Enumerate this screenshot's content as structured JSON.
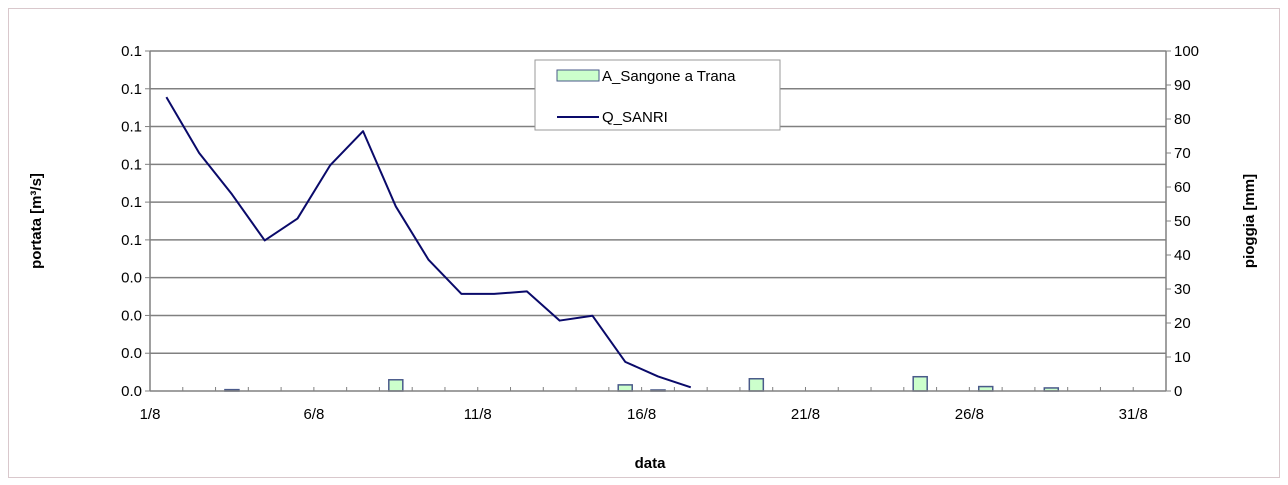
{
  "chart_data": {
    "type": "bar+line",
    "xlabel": "data",
    "ylabel_left": "portata [m³/s]",
    "ylabel_right": "pioggia [mm]",
    "x_ticks": [
      "1/8",
      "6/8",
      "11/8",
      "16/8",
      "21/8",
      "26/8",
      "31/8"
    ],
    "y_left_ticks": [
      "0.0",
      "0.0",
      "0.0",
      "0.0",
      "0.1",
      "0.1",
      "0.1",
      "0.1",
      "0.1",
      "0.1"
    ],
    "y_right_ticks": [
      "0",
      "10",
      "20",
      "30",
      "40",
      "50",
      "60",
      "70",
      "80",
      "90",
      "100"
    ],
    "y_right_range": [
      0,
      100
    ],
    "grid": "horizontal",
    "legend_position": "top-center",
    "series": [
      {
        "name": "A_Sangone a Trana",
        "kind": "bar",
        "axis": "right",
        "color": "#ccffcc",
        "edge_color": "#4a5a8a",
        "days": [
          3,
          8,
          15,
          16,
          19,
          24,
          26,
          28
        ],
        "values": [
          0.4,
          3.3,
          1.8,
          0.3,
          3.6,
          4.2,
          1.3,
          0.9
        ]
      },
      {
        "name": "Q_SANRI",
        "kind": "line",
        "axis": "left",
        "color": "#0a0a6a",
        "days": [
          1.5,
          2.5,
          3.5,
          4.5,
          5.5,
          6.5,
          7.5,
          8.5,
          9.5,
          10.5,
          11.5,
          12.5,
          13.5,
          14.5,
          15.5,
          16.5,
          17.5
        ],
        "values": [
          0.121,
          0.098,
          0.081,
          0.062,
          0.071,
          0.093,
          0.107,
          0.076,
          0.054,
          0.04,
          0.04,
          0.041,
          0.029,
          0.031,
          0.012,
          0.006,
          0.0015
        ]
      }
    ]
  }
}
